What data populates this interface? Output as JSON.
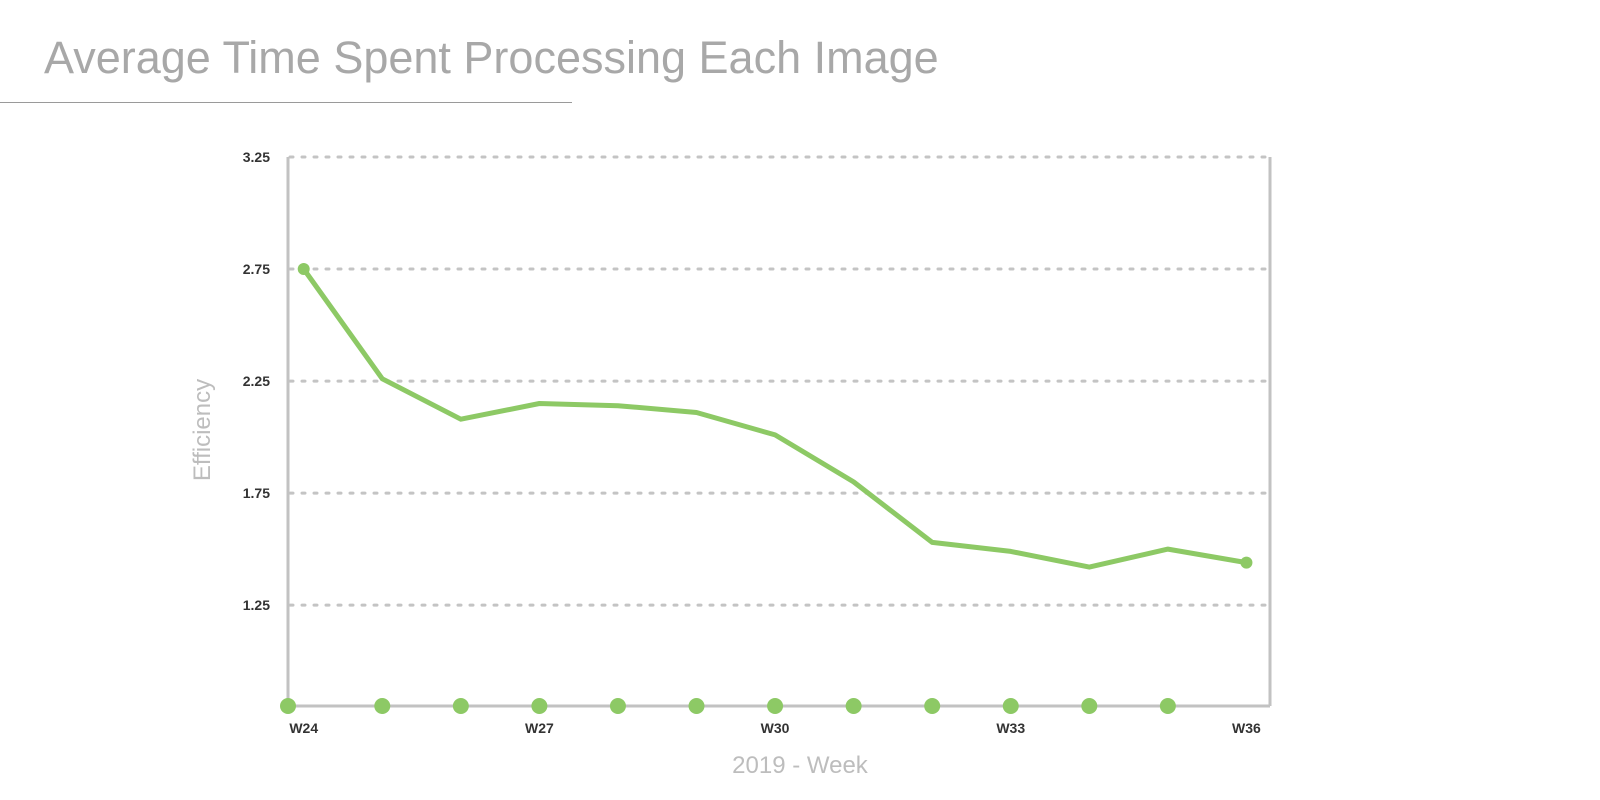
{
  "page": {
    "title": "Average Time Spent Processing Each Image"
  },
  "chart_data": {
    "type": "line",
    "title": "Average Time Spent Processing Each Image",
    "xlabel": "2019 - Week",
    "ylabel": "Efficiency",
    "x": [
      24,
      25,
      26,
      27,
      28,
      29,
      30,
      31,
      32,
      33,
      34,
      35,
      36
    ],
    "x_tick_labels": [
      "W24",
      "W27",
      "W30",
      "W33",
      "W36"
    ],
    "x_tick_values": [
      24,
      27,
      30,
      33,
      36
    ],
    "y_ticks": [
      1.25,
      1.75,
      2.25,
      2.75,
      3.25
    ],
    "y_tick_labels": [
      "1.25",
      "1.75",
      "2.25",
      "2.75",
      "3.25"
    ],
    "xlim": [
      23.8,
      36.3
    ],
    "ylim": [
      0.8,
      3.25
    ],
    "grid": true,
    "legend": "none",
    "series": [
      {
        "values": [
          2.75,
          2.26,
          2.08,
          2.15,
          2.14,
          2.11,
          2.01,
          1.8,
          1.53,
          1.49,
          1.42,
          1.5,
          1.44
        ],
        "color": "#8dc965"
      }
    ],
    "colors": {
      "line": "#8dc965",
      "axis": "#c2c2c2",
      "grid": "#c4c4c4",
      "tick_text": "#333333",
      "title_text": "#a8a8a8",
      "axis_title_text": "#bdbdbd"
    }
  }
}
